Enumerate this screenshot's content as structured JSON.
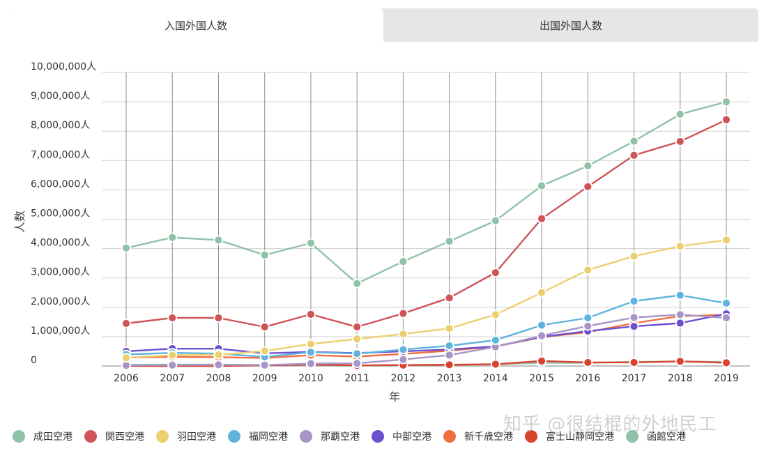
{
  "tabs": [
    {
      "label": "入国外国人数",
      "active": true
    },
    {
      "label": "出国外国人数",
      "active": false
    }
  ],
  "watermark": "知乎 @很结棍的外地民工",
  "chart_data": {
    "type": "line",
    "xlabel": "年",
    "ylabel": "人数",
    "ylim": [
      0,
      10000000
    ],
    "yticks": [
      0,
      1000000,
      2000000,
      3000000,
      4000000,
      5000000,
      6000000,
      7000000,
      8000000,
      9000000,
      10000000
    ],
    "ytick_labels": [
      "0",
      "1,000,000人",
      "2,000,000人",
      "3,000,000人",
      "4,000,000人",
      "5,000,000人",
      "6,000,000人",
      "7,000,000人",
      "8,000,000人",
      "9,000,000人",
      "10,000,000人"
    ],
    "categories": [
      "2006",
      "2007",
      "2008",
      "2009",
      "2010",
      "2011",
      "2012",
      "2013",
      "2014",
      "2015",
      "2016",
      "2017",
      "2018",
      "2019"
    ],
    "grid": true,
    "legend_position": "bottom",
    "series": [
      {
        "name": "成田空港",
        "color": "#8fc2a7",
        "values": [
          4020000,
          4380000,
          4290000,
          3780000,
          4190000,
          2810000,
          3560000,
          4250000,
          4950000,
          6140000,
          6820000,
          7660000,
          8580000,
          9000000
        ]
      },
      {
        "name": "関西空港",
        "color": "#cf5458",
        "values": [
          1450000,
          1640000,
          1640000,
          1330000,
          1760000,
          1330000,
          1790000,
          2320000,
          3180000,
          5020000,
          6110000,
          7180000,
          7650000,
          8390000
        ]
      },
      {
        "name": "羽田空港",
        "color": "#ecd06f",
        "values": [
          280000,
          370000,
          380000,
          510000,
          750000,
          920000,
          1090000,
          1280000,
          1750000,
          2500000,
          3270000,
          3740000,
          4080000,
          4290000
        ]
      },
      {
        "name": "福岡空港",
        "color": "#5fb3dd",
        "values": [
          390000,
          450000,
          420000,
          310000,
          470000,
          420000,
          560000,
          690000,
          880000,
          1390000,
          1640000,
          2210000,
          2410000,
          2140000
        ]
      },
      {
        "name": "那覇空港",
        "color": "#a895c7",
        "values": [
          20000,
          30000,
          40000,
          30000,
          80000,
          90000,
          220000,
          370000,
          650000,
          1030000,
          1360000,
          1650000,
          1750000,
          1640000
        ]
      },
      {
        "name": "中部空港",
        "color": "#6b4fcf",
        "values": [
          500000,
          590000,
          590000,
          430000,
          480000,
          440000,
          500000,
          560000,
          670000,
          990000,
          1190000,
          1350000,
          1460000,
          1780000
        ]
      },
      {
        "name": "新千歳空港",
        "color": "#f26c3f",
        "values": [
          290000,
          310000,
          300000,
          270000,
          370000,
          320000,
          410000,
          520000,
          660000,
          980000,
          1150000,
          1460000,
          1700000,
          1740000
        ]
      },
      {
        "name": "富士山静岡空港",
        "color": "#d9432e",
        "values": [
          0,
          0,
          0,
          20000,
          50000,
          20000,
          30000,
          40000,
          60000,
          170000,
          120000,
          120000,
          160000,
          110000
        ]
      },
      {
        "name": "函館空港",
        "color": "#8fc2a7",
        "values": [
          40000,
          50000,
          50000,
          30000,
          50000,
          20000,
          30000,
          40000,
          60000,
          110000,
          110000,
          140000,
          150000,
          140000
        ]
      }
    ]
  }
}
